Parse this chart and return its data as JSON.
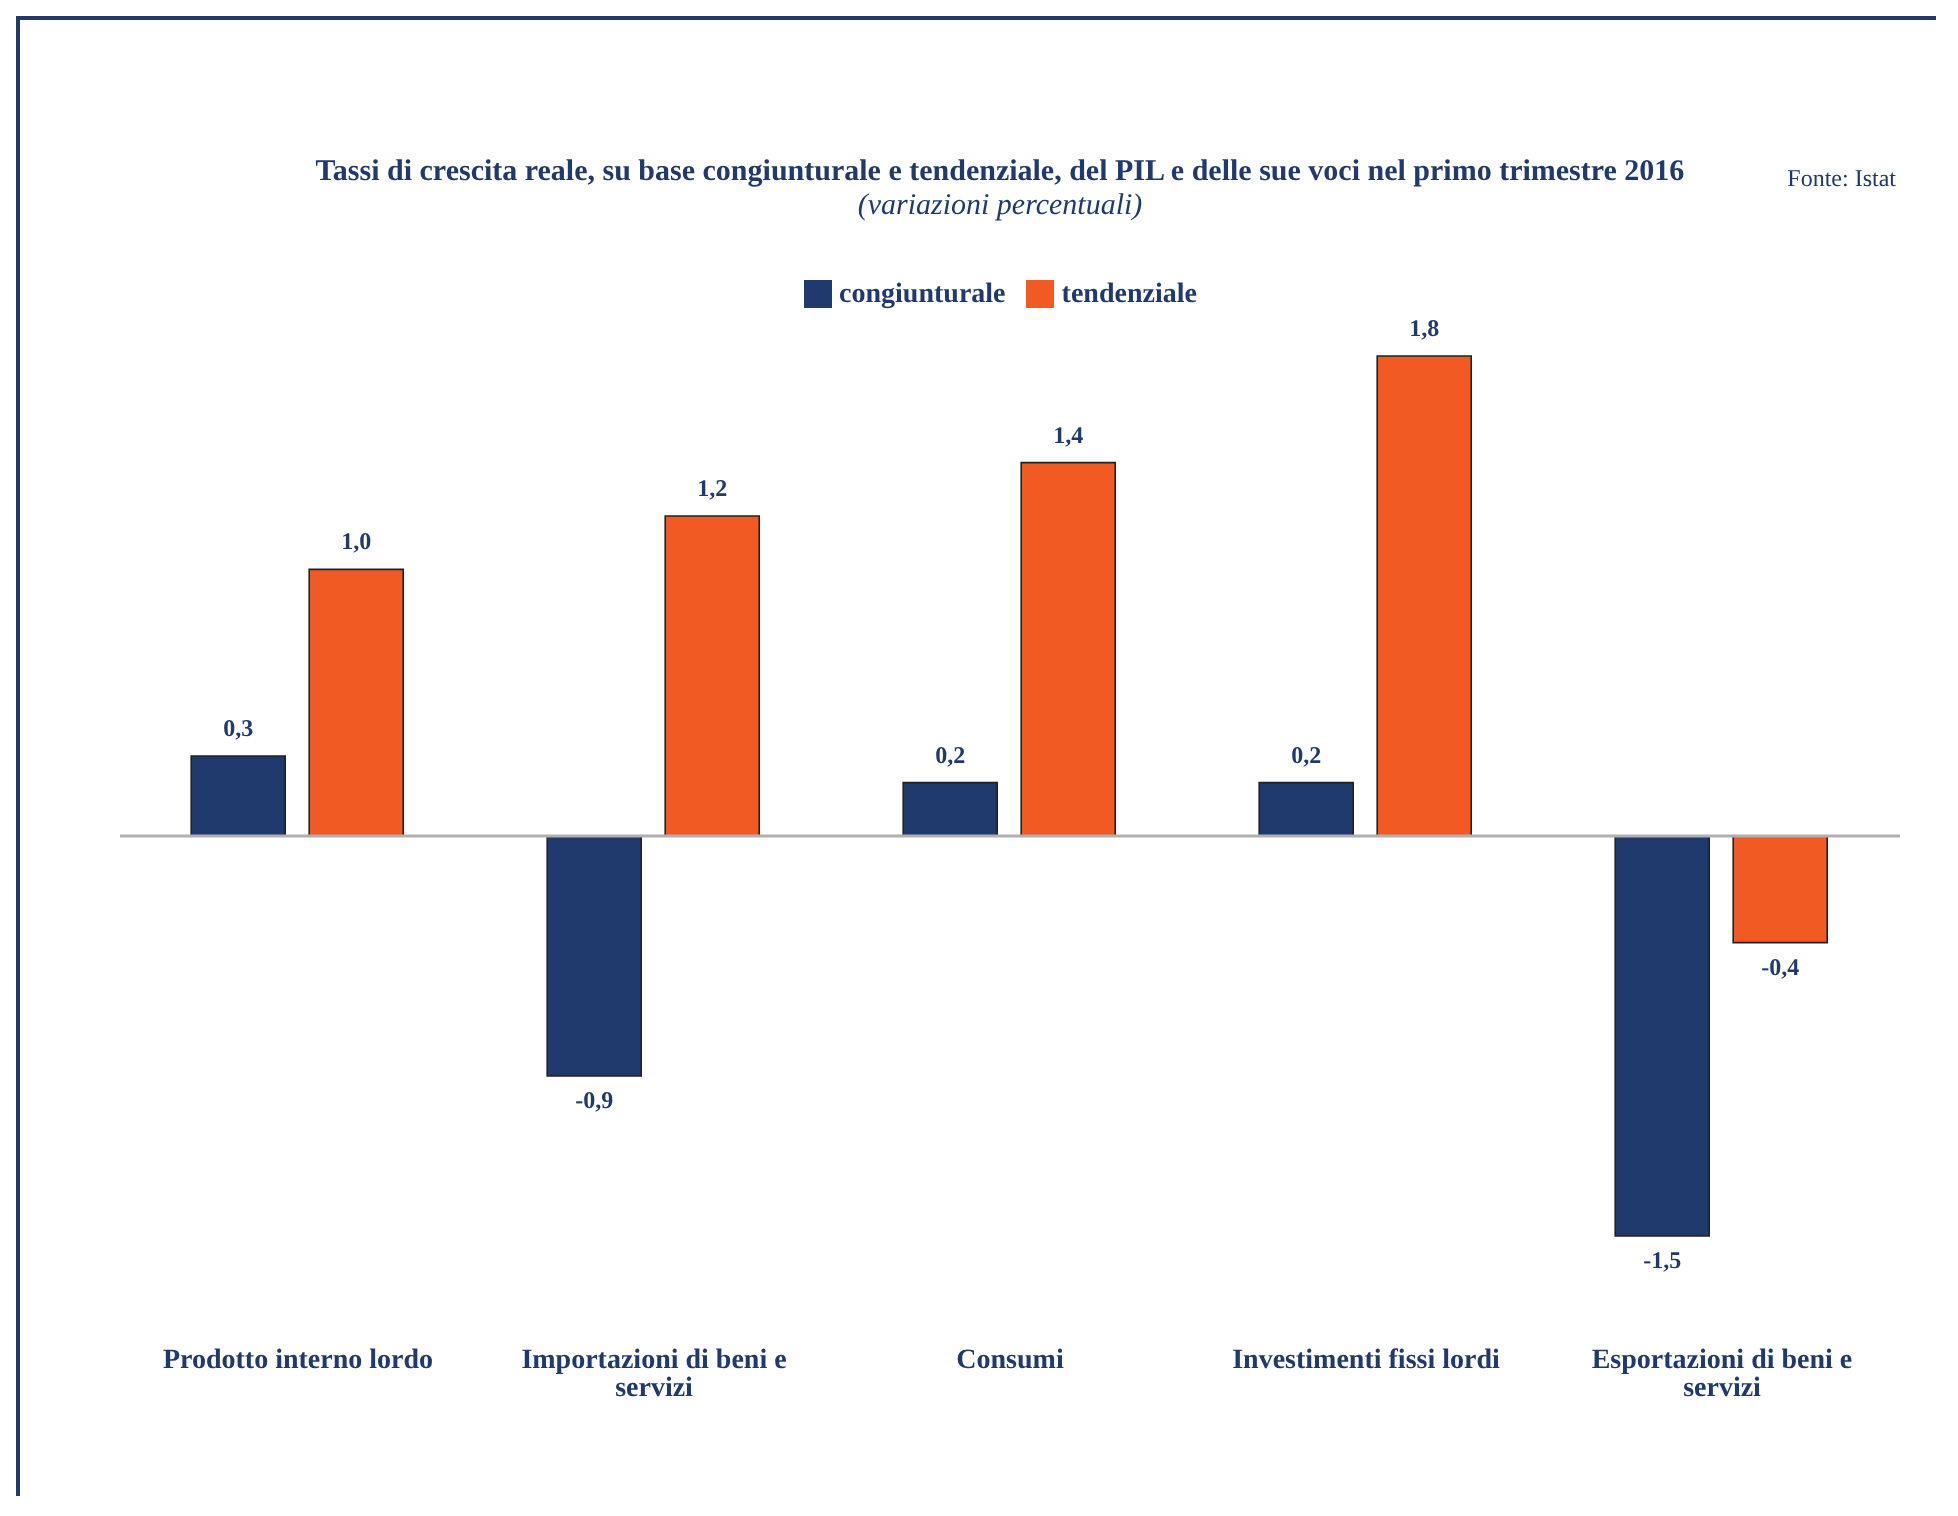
{
  "chart_data": {
    "type": "bar",
    "title": "Tassi di crescita reale, su base congiunturale e tendenziale, del PIL e delle sue voci nel primo trimestre 2016",
    "subtitle": "(variazioni percentuali)",
    "annotations": [
      "Fonte: Istat"
    ],
    "categories": [
      "Prodotto interno lordo",
      "Importazioni di beni e servizi",
      "Consumi",
      "Investimenti fissi lordi",
      "Esportazioni di beni e servizi"
    ],
    "series": [
      {
        "name": "congiunturale",
        "color": "#213a6e",
        "values": [
          0.3,
          -0.9,
          0.2,
          0.2,
          -1.5
        ],
        "value_labels": [
          "0,3",
          "-0,9",
          "0,2",
          "0,2",
          "-1,5"
        ]
      },
      {
        "name": "tendenziale",
        "color": "#f15a22",
        "values": [
          1.0,
          1.2,
          1.4,
          1.8,
          -0.4
        ],
        "value_labels": [
          "1,0",
          "1,2",
          "1,4",
          "1,8",
          "-0,4"
        ]
      }
    ],
    "legend": "top"
  }
}
